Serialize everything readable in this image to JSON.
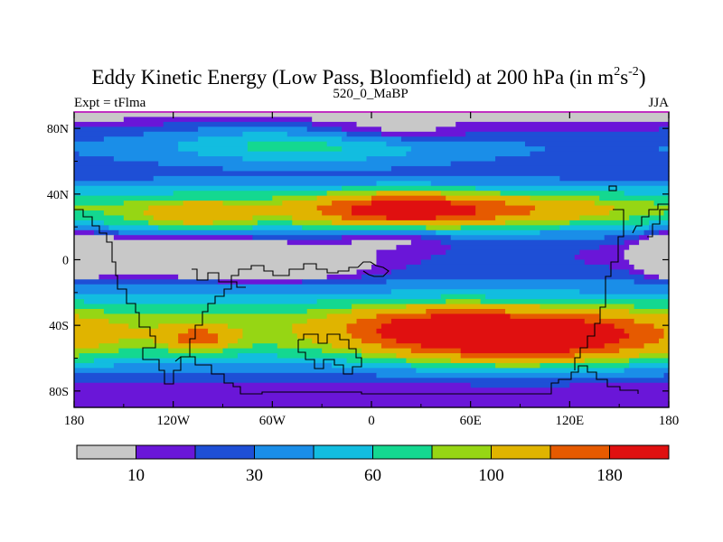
{
  "chart_data": {
    "type": "heatmap",
    "title": {
      "main": "Eddy Kinetic Energy (Low Pass, Bloomfield) at 200 hPa (in m",
      "sup1": "2",
      "mid": "s",
      "sup2": "-2",
      "end": ")"
    },
    "left_label": "Expt = tFlma",
    "center_label": "520_0_MaBP",
    "right_label": "JJA",
    "x_axis": {
      "range": [
        -180,
        180
      ],
      "ticks": [
        -180,
        -120,
        -60,
        0,
        60,
        120,
        180
      ],
      "tick_labels": [
        "180",
        "120W",
        "60W",
        "0",
        "60E",
        "120E",
        "180"
      ]
    },
    "y_axis": {
      "range": [
        -90,
        90
      ],
      "ticks": [
        80,
        40,
        0,
        -40,
        -80
      ],
      "tick_labels": [
        "80N",
        "40N",
        "0",
        "40S",
        "80S"
      ]
    },
    "colorbar": {
      "levels": [
        10,
        20,
        30,
        45,
        60,
        80,
        100,
        140,
        180
      ],
      "labels": [
        {
          "value": 10,
          "text": "10"
        },
        {
          "value": 30,
          "text": "30"
        },
        {
          "value": 60,
          "text": "60"
        },
        {
          "value": 100,
          "text": "100"
        },
        {
          "value": 180,
          "text": "180"
        }
      ],
      "colors": [
        "#c8c8c8",
        "#6a16d8",
        "#1e4fd6",
        "#1a8ee8",
        "#12bde0",
        "#14d890",
        "#96d614",
        "#e0b400",
        "#e65a00",
        "#e01010"
      ]
    },
    "field_features": [
      {
        "lon": 90,
        "lat": -47,
        "rx": 55,
        "ry": 10,
        "amp": 190
      },
      {
        "lon": 30,
        "lat": -40,
        "rx": 35,
        "ry": 8,
        "amp": 60
      },
      {
        "lon": 20,
        "lat": 30,
        "rx": 40,
        "ry": 7,
        "amp": 150
      },
      {
        "lon": -105,
        "lat": 27,
        "rx": 25,
        "ry": 6,
        "amp": 60
      },
      {
        "lon": 105,
        "lat": 30,
        "rx": 35,
        "ry": 6,
        "amp": 45
      },
      {
        "lon": -120,
        "lat": 3,
        "rx": 45,
        "ry": 7,
        "amp": -70
      },
      {
        "lon": -60,
        "lat": -3,
        "rx": 35,
        "ry": 6,
        "amp": -55
      },
      {
        "lon": -175,
        "lat": 3,
        "rx": 12,
        "ry": 8,
        "amp": -45
      },
      {
        "lon": 180,
        "lat": 3,
        "rx": 10,
        "ry": 8,
        "amp": -35
      },
      {
        "lon": 10,
        "lat": 15,
        "rx": 25,
        "ry": 6,
        "amp": -30
      },
      {
        "lon": -105,
        "lat": -48,
        "rx": 14,
        "ry": 5,
        "amp": 80
      },
      {
        "lon": 10,
        "lat": 78,
        "rx": 35,
        "ry": 6,
        "amp": -25
      },
      {
        "lon": -40,
        "lat": 70,
        "rx": 60,
        "ry": 8,
        "amp": 40
      }
    ]
  }
}
